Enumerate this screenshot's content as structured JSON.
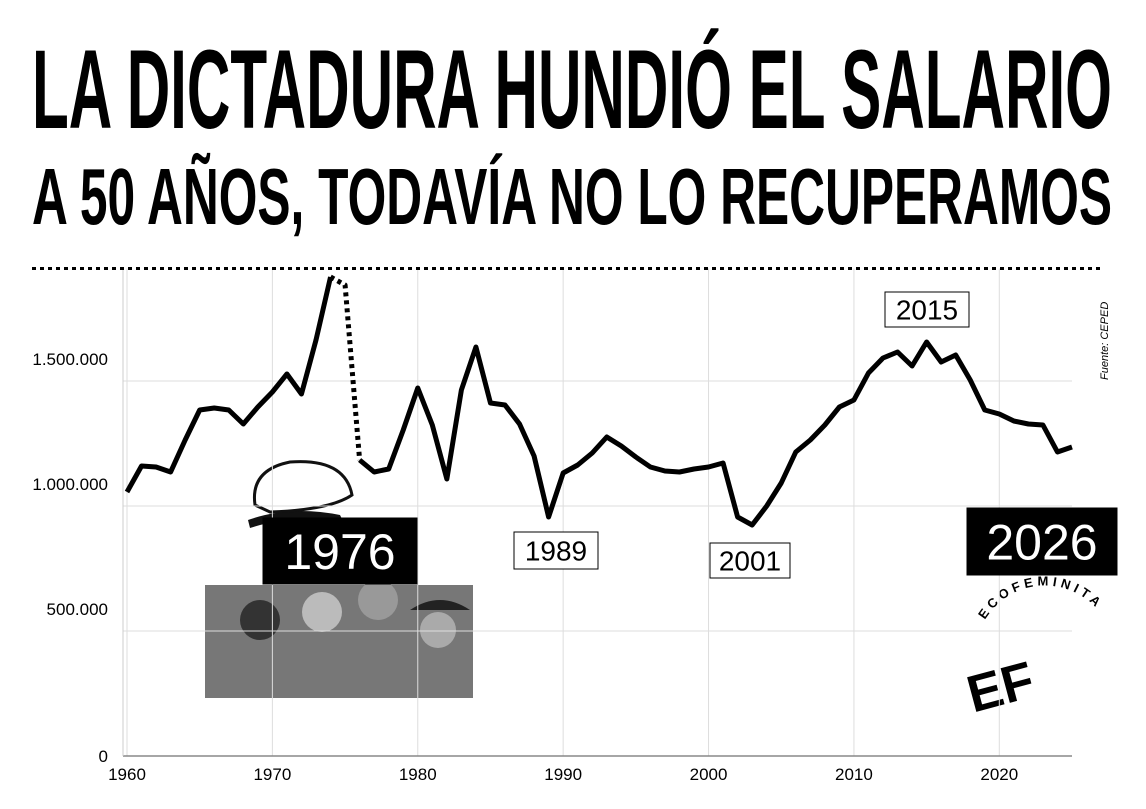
{
  "chart_data": {
    "type": "line",
    "title": "LA DICTADURA HUNDIÓ EL SALARIO",
    "subtitle": "A 50 AÑOS, TODAVÍA NO LO RECUPERAMOS",
    "source": "Fuente: CEPED",
    "logo": {
      "name": "ECOFEMINITA",
      "mark": "EF"
    },
    "annotations": [
      "1976",
      "1989",
      "2001",
      "2015",
      "2026"
    ],
    "x": [
      1960,
      1961,
      1962,
      1963,
      1964,
      1965,
      1966,
      1967,
      1968,
      1969,
      1970,
      1971,
      1972,
      1973,
      1974,
      1975,
      1976,
      1977,
      1978,
      1979,
      1980,
      1981,
      1982,
      1983,
      1984,
      1985,
      1986,
      1987,
      1988,
      1989,
      1990,
      1991,
      1992,
      1993,
      1994,
      1995,
      1996,
      1997,
      1998,
      1999,
      2000,
      2001,
      2002,
      2003,
      2004,
      2005,
      2006,
      2007,
      2008,
      2009,
      2010,
      2011,
      2012,
      2013,
      2014,
      2015,
      2016,
      2017,
      2018,
      2019,
      2020,
      2021,
      2022,
      2023,
      2024,
      2025
    ],
    "series": [
      {
        "name": "Salario",
        "color": "#000000",
        "values": [
          1056000,
          1160000,
          1156000,
          1136000,
          1264000,
          1384000,
          1392000,
          1384000,
          1328000,
          1396000,
          1456000,
          1528000,
          1448000,
          1664000,
          1916000,
          1884000,
          1184000,
          1136000,
          1148000,
          1304000,
          1472000,
          1324000,
          1108000,
          1464000,
          1636000,
          1412000,
          1404000,
          1328000,
          1200000,
          956000,
          1132000,
          1164000,
          1212000,
          1276000,
          1240000,
          1196000,
          1156000,
          1140000,
          1136000,
          1148000,
          1156000,
          1172000,
          956000,
          924000,
          1000000,
          1092000,
          1216000,
          1264000,
          1324000,
          1396000,
          1424000,
          1532000,
          1592000,
          1616000,
          1560000,
          1656000,
          1576000,
          1604000,
          1504000,
          1384000,
          1368000,
          1340000,
          1328000,
          1324000,
          1216000,
          1236000
        ]
      }
    ],
    "dotted_from": 1974,
    "dotted_to": 1976,
    "xlim": [
      1960,
      2025
    ],
    "xticks": [
      1960,
      1970,
      1980,
      1990,
      2000,
      2010,
      2020
    ],
    "ylim": [
      0,
      1950000
    ],
    "yticks": [
      0,
      {
        "value": 500000,
        "label": "500.000"
      },
      {
        "value": 1000000,
        "label": "1.000.000"
      },
      {
        "value": 1500000,
        "label": "1.500.000"
      }
    ],
    "grid": true
  }
}
